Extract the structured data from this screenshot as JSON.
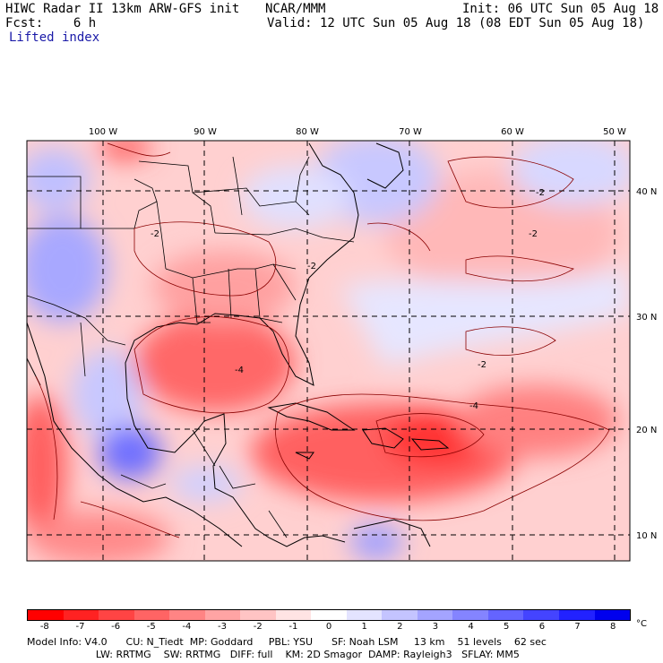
{
  "header": {
    "line1_left": "HIWC Radar II 13km ARW-GFS init",
    "line1_mid": "NCAR/MMM",
    "line1_right": "Init: 06 UTC Sun 05 Aug 18",
    "line2_left": "Fcst:    6 h",
    "line2_right": "Valid: 12 UTC Sun 05 Aug 18 (08 EDT Sun 05 Aug 18)",
    "field": "Lifted index"
  },
  "map": {
    "lon_labels": [
      "100 W",
      "90 W",
      "80 W",
      "70 W",
      "60 W",
      "50 W"
    ],
    "lat_labels": [
      "40 N",
      "30 N",
      "20 N",
      "10 N"
    ],
    "contour_labels": [
      "-2",
      "-4",
      "-2",
      "-2",
      "-2",
      "-2",
      "-4"
    ]
  },
  "colorbar": {
    "colors": [
      "#ff0000",
      "#ff2222",
      "#ff4444",
      "#ff6464",
      "#ff8484",
      "#ffa4a4",
      "#ffc4c4",
      "#ffe4e4",
      "#ffffff",
      "#e4e4ff",
      "#c4c4ff",
      "#a4a4ff",
      "#8484ff",
      "#6464ff",
      "#4444ff",
      "#2222ff",
      "#0000ee"
    ],
    "ticks": [
      "-8",
      "-7",
      "-6",
      "-5",
      "-4",
      "-3",
      "-2",
      "-1",
      "0",
      "1",
      "2",
      "3",
      "4",
      "5",
      "6",
      "7",
      "8"
    ],
    "unit": "°C"
  },
  "model_info": {
    "line1": "Model Info: V4.0      CU: N_Tiedt  MP: Goddard     PBL: YSU      SF: Noah LSM     13 km    51 levels    62 sec",
    "line2": "                      LW: RRTMG    SW: RRTMG   DIFF: full    KM: 2D Smagor  DAMP: Rayleigh3   SFLAY: MM5"
  }
}
